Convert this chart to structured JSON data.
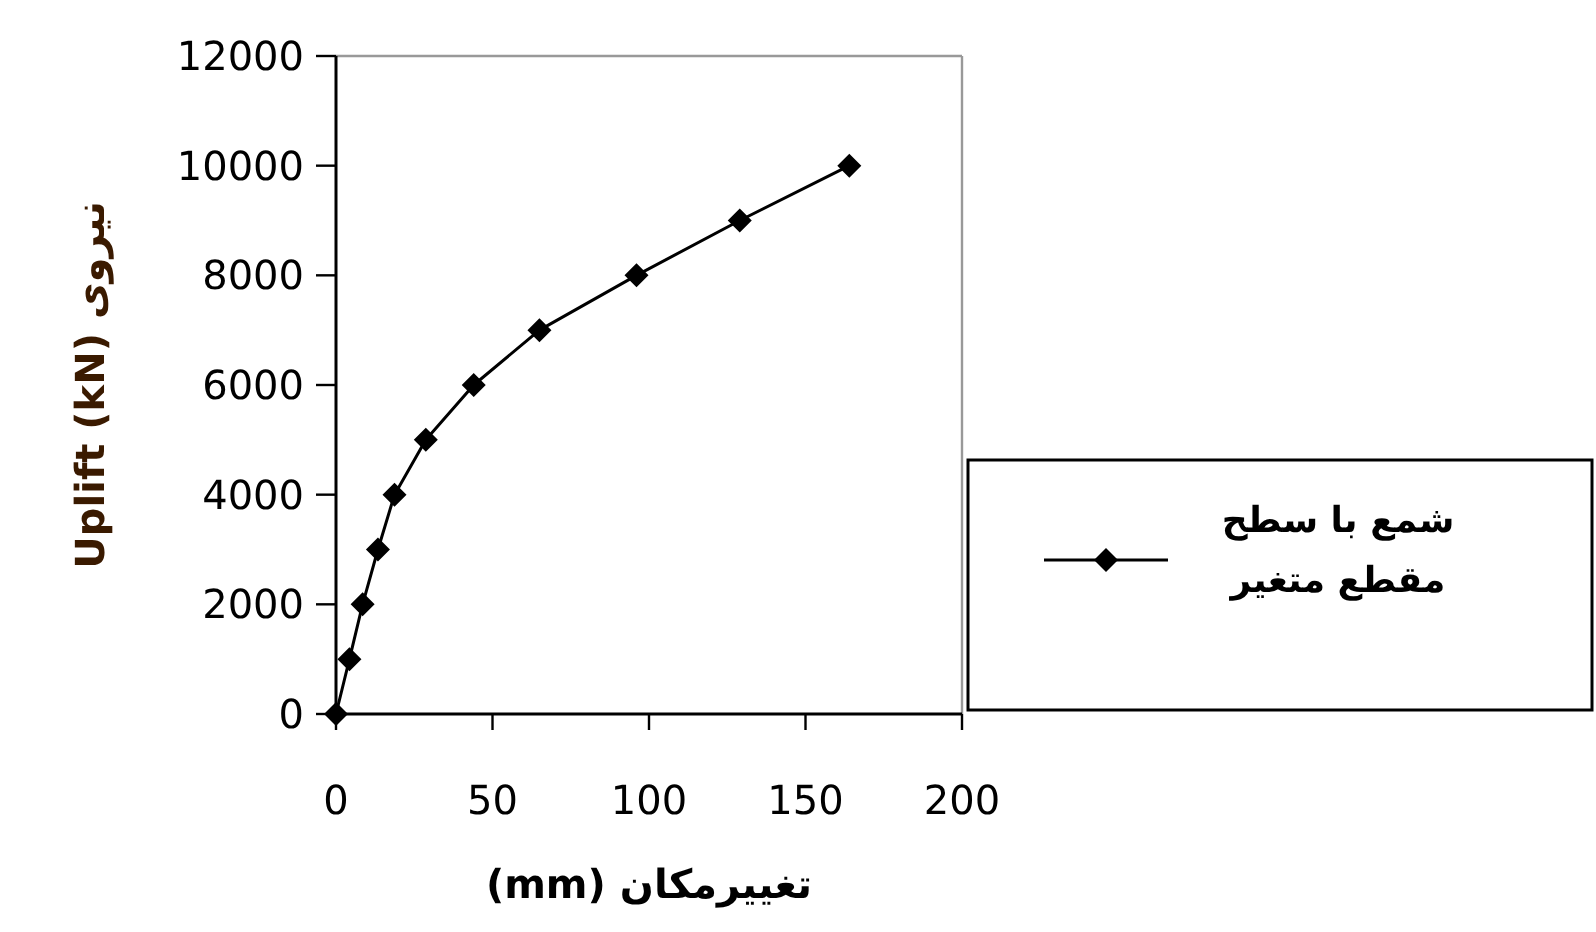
{
  "chart_data": {
    "type": "line",
    "xlabel": "تغییرمکان (mm)",
    "ylabel": "نیروی Uplift (kN)",
    "xlim": [
      0,
      200
    ],
    "xticks": [
      0,
      50,
      100,
      150,
      200
    ],
    "ylim": [
      0,
      12000
    ],
    "yticks": [
      0,
      2000,
      4000,
      6000,
      8000,
      10000,
      12000
    ],
    "x": [
      0,
      4.3,
      8.5,
      13.4,
      18.7,
      28.7,
      44,
      65,
      96,
      129,
      164
    ],
    "series": [
      {
        "name": "شمع با سطح مقطع متغیر",
        "color": "#000000",
        "values": [
          0,
          1000,
          2000,
          3000,
          4000,
          5000,
          6000,
          7000,
          8000,
          9000,
          10000
        ]
      }
    ],
    "marker": "diamond",
    "line_style": "solid",
    "legend": "right",
    "grid": false
  }
}
